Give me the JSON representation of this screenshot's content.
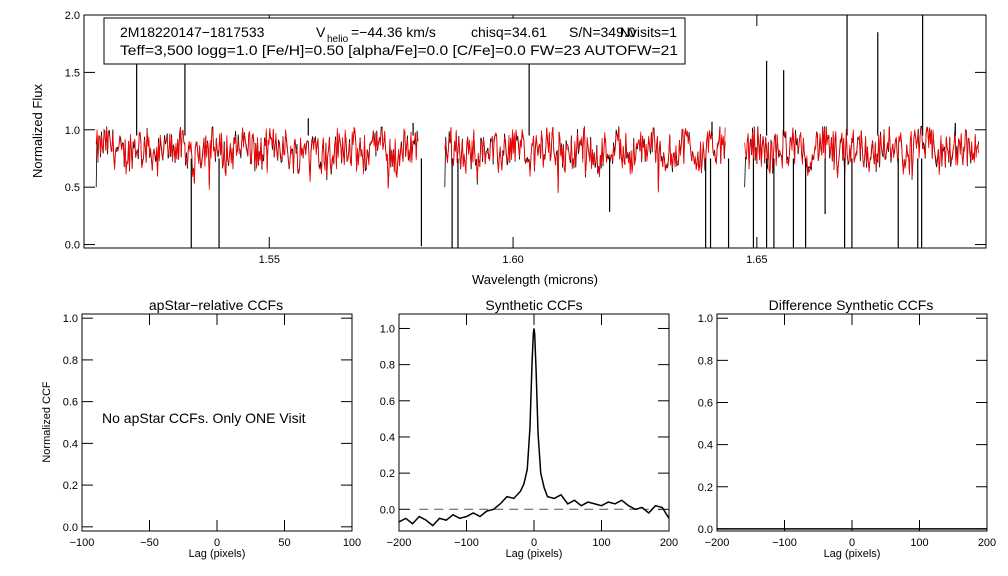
{
  "chart_data": [
    {
      "type": "line",
      "panel": "spectrum",
      "title": "",
      "xlabel": "Wavelength (microns)",
      "ylabel": "Normalized Flux",
      "xlim": [
        1.512,
        1.697
      ],
      "ylim": [
        -0.03,
        2.0
      ],
      "xticks": [
        {
          "value": 1.55,
          "label": "1.55"
        },
        {
          "value": 1.6,
          "label": "1.60"
        },
        {
          "value": 1.65,
          "label": "1.65"
        }
      ],
      "yticks": [
        {
          "value": 0.0,
          "label": "0.0"
        },
        {
          "value": 0.5,
          "label": "0.5"
        },
        {
          "value": 1.0,
          "label": "1.0"
        },
        {
          "value": 1.5,
          "label": "1.5"
        },
        {
          "value": 2.0,
          "label": "2.0"
        }
      ],
      "info": {
        "star_id": "2M18220147−1817533",
        "vhelio_prefix": "V",
        "vhelio_subscript": "helio",
        "vhelio_value": "=−44.36 km/s",
        "chisq": "chisq=34.61",
        "snr": "S/N=349.0",
        "nvisits": "Nvisits=1",
        "params": "Teff=3,500 logg=1.0 [Fe/H]=0.50 [alpha/Fe]=0.0 [C/Fe]=0.0 FW=23 AUTOFW=21"
      },
      "detectors": [
        {
          "range": [
            1.5145,
            1.5805
          ]
        },
        {
          "range": [
            1.586,
            1.6435
          ]
        },
        {
          "range": [
            1.6475,
            1.6955
          ]
        }
      ],
      "series": [
        {
          "name": "apStar spectrum",
          "color": "#000000",
          "continuum": 0.83
        },
        {
          "name": "best-fit synthetic",
          "color": "#ff0000",
          "continuum": 0.83
        }
      ],
      "spikes": [
        {
          "x": 1.5228,
          "y": 1.62
        },
        {
          "x": 1.5327,
          "y": 1.58
        },
        {
          "x": 1.558,
          "y": 1.1
        },
        {
          "x": 1.5795,
          "y": 1.06
        },
        {
          "x": 1.6033,
          "y": 1.58
        },
        {
          "x": 1.6408,
          "y": 1.07
        },
        {
          "x": 1.652,
          "y": 1.6
        },
        {
          "x": 1.6555,
          "y": 1.52
        },
        {
          "x": 1.6685,
          "y": 2.0
        },
        {
          "x": 1.6748,
          "y": 1.85
        },
        {
          "x": 1.684,
          "y": 2.0
        },
        {
          "x": 1.6907,
          "y": 1.06
        }
      ],
      "dips": [
        {
          "x": 1.534,
          "y": 0.0
        },
        {
          "x": 1.5397,
          "y": 0.0
        },
        {
          "x": 1.5812,
          "y": 0.02
        },
        {
          "x": 1.5875,
          "y": 0.0
        },
        {
          "x": 1.5887,
          "y": 0.0
        },
        {
          "x": 1.6198,
          "y": 0.32
        },
        {
          "x": 1.6395,
          "y": 0.0
        },
        {
          "x": 1.6405,
          "y": 0.0
        },
        {
          "x": 1.6442,
          "y": 0.0
        },
        {
          "x": 1.6493,
          "y": 0.0
        },
        {
          "x": 1.652,
          "y": 0.0
        },
        {
          "x": 1.6535,
          "y": 0.0
        },
        {
          "x": 1.6575,
          "y": 0.0
        },
        {
          "x": 1.66,
          "y": 0.0
        },
        {
          "x": 1.664,
          "y": 0.3
        },
        {
          "x": 1.668,
          "y": 0.0
        },
        {
          "x": 1.6695,
          "y": 0.0
        },
        {
          "x": 1.679,
          "y": 0.0
        },
        {
          "x": 1.683,
          "y": 0.0
        },
        {
          "x": 1.6838,
          "y": 0.0
        }
      ]
    },
    {
      "type": "line",
      "panel": "apstar-ccf",
      "title": "apStar−relative CCFs",
      "xlabel": "Lag (pixels)",
      "ylabel": "Normalized CCF",
      "xlim": [
        -100,
        100
      ],
      "ylim": [
        -0.02,
        1.02
      ],
      "xticks": [
        {
          "value": -100,
          "label": "−100"
        },
        {
          "value": -50,
          "label": "−50"
        },
        {
          "value": 0,
          "label": "0"
        },
        {
          "value": 50,
          "label": "50"
        },
        {
          "value": 100,
          "label": "100"
        }
      ],
      "yticks": [
        {
          "value": 0.0,
          "label": "0.0"
        },
        {
          "value": 0.2,
          "label": "0.2"
        },
        {
          "value": 0.4,
          "label": "0.4"
        },
        {
          "value": 0.6,
          "label": "0.6"
        },
        {
          "value": 0.8,
          "label": "0.8"
        },
        {
          "value": 1.0,
          "label": "1.0"
        }
      ],
      "annotation": "No apStar CCFs.  Only ONE Visit",
      "series": []
    },
    {
      "type": "line",
      "panel": "synthetic-ccf",
      "title": "Synthetic CCFs",
      "xlabel": "Lag (pixels)",
      "ylabel": "",
      "xlim": [
        -200,
        200
      ],
      "ylim": [
        -0.12,
        1.08
      ],
      "xticks": [
        {
          "value": -200,
          "label": "−200"
        },
        {
          "value": -100,
          "label": "−100"
        },
        {
          "value": 0,
          "label": "0"
        },
        {
          "value": 100,
          "label": "100"
        },
        {
          "value": 200,
          "label": "200"
        }
      ],
      "yticks": [
        {
          "value": 0.0,
          "label": "0.0"
        },
        {
          "value": 0.2,
          "label": "0.2"
        },
        {
          "value": 0.4,
          "label": "0.4"
        },
        {
          "value": 0.6,
          "label": "0.6"
        },
        {
          "value": 0.8,
          "label": "0.8"
        },
        {
          "value": 1.0,
          "label": "1.0"
        }
      ],
      "reference_line": {
        "y": 0.0,
        "from": -170,
        "to": 170,
        "style": "dashed"
      },
      "series": [
        {
          "name": "synthetic CCF",
          "x": [
            -200,
            -190,
            -180,
            -170,
            -160,
            -150,
            -140,
            -130,
            -120,
            -110,
            -100,
            -90,
            -80,
            -70,
            -60,
            -50,
            -40,
            -30,
            -20,
            -15,
            -10,
            -6,
            -3,
            -1,
            0,
            1,
            3,
            6,
            10,
            15,
            20,
            30,
            40,
            50,
            60,
            70,
            80,
            90,
            100,
            110,
            120,
            130,
            140,
            150,
            160,
            170,
            180,
            190,
            200
          ],
          "y": [
            -0.07,
            -0.05,
            -0.08,
            -0.04,
            -0.06,
            -0.09,
            -0.05,
            -0.06,
            -0.03,
            -0.05,
            -0.04,
            -0.02,
            -0.04,
            -0.01,
            0.0,
            0.03,
            0.07,
            0.06,
            0.1,
            0.14,
            0.22,
            0.45,
            0.8,
            0.97,
            1.0,
            0.97,
            0.78,
            0.42,
            0.2,
            0.12,
            0.07,
            0.06,
            0.08,
            0.03,
            0.05,
            0.02,
            0.04,
            0.03,
            0.02,
            0.04,
            0.03,
            0.05,
            0.02,
            0.0,
            0.01,
            -0.02,
            0.02,
            0.01,
            -0.05
          ]
        }
      ]
    },
    {
      "type": "line",
      "panel": "difference-ccf",
      "title": "Difference Synthetic CCFs",
      "xlabel": "Lag (pixels)",
      "ylabel": "",
      "xlim": [
        -200,
        200
      ],
      "ylim": [
        -0.01,
        1.02
      ],
      "xticks": [
        {
          "value": -200,
          "label": "−200"
        },
        {
          "value": -100,
          "label": "−100"
        },
        {
          "value": 0,
          "label": "0"
        },
        {
          "value": 100,
          "label": "100"
        },
        {
          "value": 200,
          "label": "200"
        }
      ],
      "yticks": [
        {
          "value": 0.0,
          "label": "0.0"
        },
        {
          "value": 0.2,
          "label": "0.2"
        },
        {
          "value": 0.4,
          "label": "0.4"
        },
        {
          "value": 0.6,
          "label": "0.6"
        },
        {
          "value": 0.8,
          "label": "0.8"
        },
        {
          "value": 1.0,
          "label": "1.0"
        }
      ],
      "series": [
        {
          "name": "difference CCF",
          "x": [
            -200,
            200
          ],
          "y": [
            0.0,
            0.0
          ]
        }
      ]
    }
  ]
}
